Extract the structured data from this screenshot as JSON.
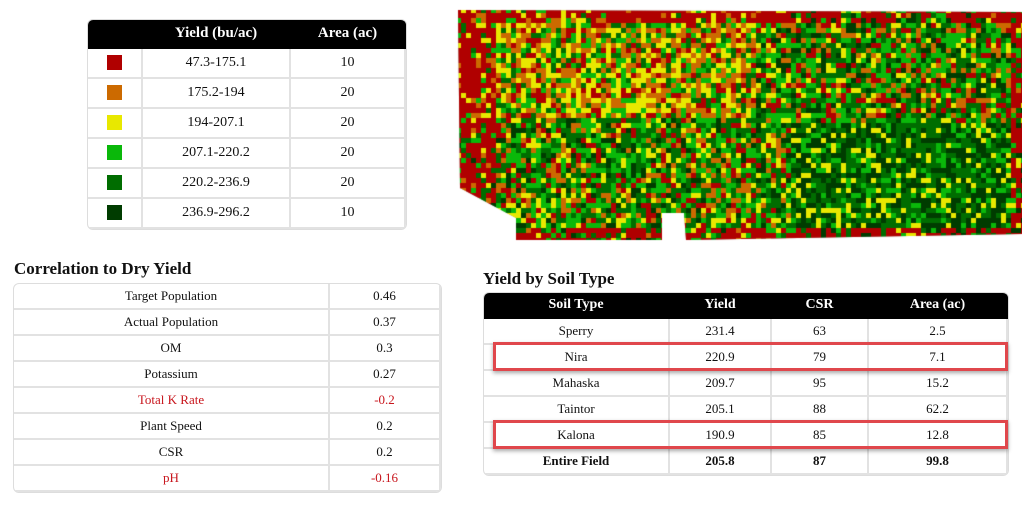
{
  "legend": {
    "headers": [
      "",
      "Yield (bu/ac)",
      "Area (ac)"
    ],
    "rows": [
      {
        "color": "#b00000",
        "range": "47.3-175.1",
        "area": "10"
      },
      {
        "color": "#cc6a00",
        "range": "175.2-194",
        "area": "20"
      },
      {
        "color": "#e8e800",
        "range": "194-207.1",
        "area": "20"
      },
      {
        "color": "#0ab80a",
        "range": "207.1-220.2",
        "area": "20"
      },
      {
        "color": "#006d00",
        "range": "220.2-236.9",
        "area": "20"
      },
      {
        "color": "#003c00",
        "range": "236.9-296.2",
        "area": "10"
      }
    ]
  },
  "correlation": {
    "title": "Correlation to Dry Yield",
    "rows": [
      {
        "label": "Target Population",
        "value": "0.46",
        "negative": false
      },
      {
        "label": "Actual Population",
        "value": "0.37",
        "negative": false
      },
      {
        "label": "OM",
        "value": "0.3",
        "negative": false
      },
      {
        "label": "Potassium",
        "value": "0.27",
        "negative": false
      },
      {
        "label": "Total K Rate",
        "value": "-0.2",
        "negative": true
      },
      {
        "label": "Plant Speed",
        "value": "0.2",
        "negative": false
      },
      {
        "label": "CSR",
        "value": "0.2",
        "negative": false
      },
      {
        "label": "pH",
        "value": "-0.16",
        "negative": true
      }
    ]
  },
  "soil": {
    "title": "Yield by Soil Type",
    "headers": [
      "Soil Type",
      "Yield",
      "CSR",
      "Area (ac)"
    ],
    "rows": [
      {
        "soil": "Sperry",
        "yield": "231.4",
        "csr": "63",
        "area": "2.5",
        "highlight": false
      },
      {
        "soil": "Nira",
        "yield": "220.9",
        "csr": "79",
        "area": "7.1",
        "highlight": true
      },
      {
        "soil": "Mahaska",
        "yield": "209.7",
        "csr": "95",
        "area": "15.2",
        "highlight": false
      },
      {
        "soil": "Taintor",
        "yield": "205.1",
        "csr": "88",
        "area": "62.2",
        "highlight": false
      },
      {
        "soil": "Kalona",
        "yield": "190.9",
        "csr": "85",
        "area": "12.8",
        "highlight": true
      }
    ],
    "total": {
      "soil": "Entire Field",
      "yield": "205.8",
      "csr": "87",
      "area": "99.8"
    },
    "highlight_color": "#e0474c"
  }
}
